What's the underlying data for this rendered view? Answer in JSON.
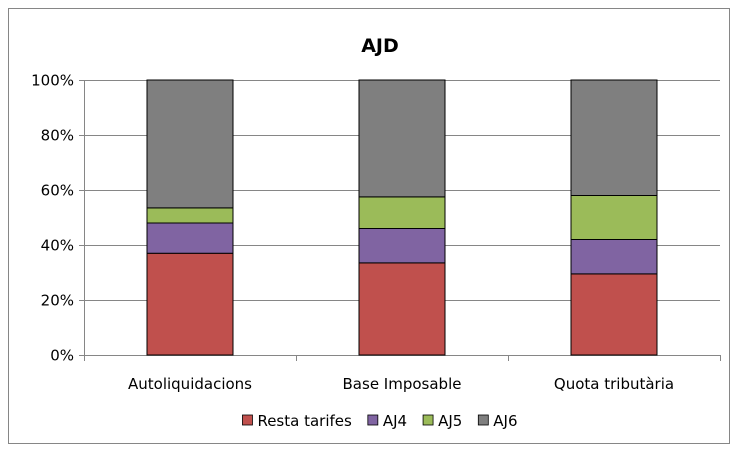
{
  "chart_data": {
    "type": "bar",
    "stacked": true,
    "title": "AJD",
    "xlabel": "",
    "ylabel": "",
    "categories": [
      "Autoliquidacions",
      "Base Imposable",
      "Quota tributària"
    ],
    "series": [
      {
        "name": "Resta tarifes",
        "values": [
          37,
          33.5,
          29.5
        ],
        "color": "#c0504d"
      },
      {
        "name": "AJ4",
        "values": [
          11,
          12.5,
          12.5
        ],
        "color": "#8064a2"
      },
      {
        "name": "AJ5",
        "values": [
          5.5,
          11.5,
          16
        ],
        "color": "#9bbb59"
      },
      {
        "name": "AJ6",
        "values": [
          46.5,
          42.5,
          42
        ],
        "color": "#7f7f7f"
      }
    ],
    "ylim": [
      0,
      100
    ],
    "yticks": [
      "0%",
      "20%",
      "40%",
      "60%",
      "80%",
      "100%"
    ],
    "grid": true,
    "legend_position": "bottom"
  }
}
